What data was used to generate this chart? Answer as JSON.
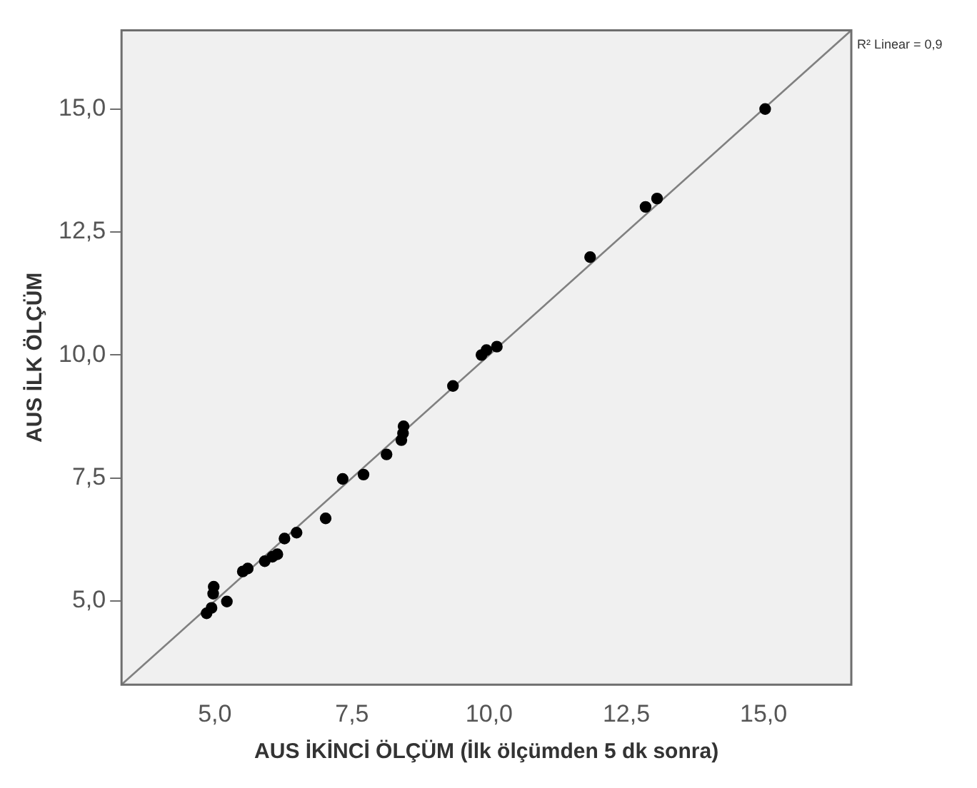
{
  "chart_data": {
    "type": "scatter",
    "xlabel": "AUS İKİNCİ ÖLÇÜM (İlk ölçümden 5 dk sonra)",
    "ylabel": "AUS İLK ÖLÇÜM",
    "xlim": [
      3.3,
      16.6
    ],
    "ylim": [
      3.3,
      16.6
    ],
    "xticks": [
      {
        "value": 5,
        "label": "5,0"
      },
      {
        "value": 7.5,
        "label": "7,5"
      },
      {
        "value": 10,
        "label": "10,0"
      },
      {
        "value": 12.5,
        "label": "12,5"
      },
      {
        "value": 15,
        "label": "15,0"
      }
    ],
    "yticks": [
      {
        "value": 5,
        "label": "5,0"
      },
      {
        "value": 7.5,
        "label": "7,5"
      },
      {
        "value": 10,
        "label": "10,0"
      },
      {
        "value": 12.5,
        "label": "12,5"
      },
      {
        "value": 15,
        "label": "15,0"
      }
    ],
    "grid": false,
    "legend": false,
    "marker": "circle",
    "annotations": [
      "R² Linear = 0,9"
    ],
    "series": [
      {
        "color": "#000000",
        "x": [
          4.85,
          4.94,
          4.98,
          4.97,
          5.22,
          5.51,
          5.6,
          5.91,
          6.05,
          6.14,
          6.27,
          6.49,
          7.02,
          7.33,
          7.71,
          8.13,
          8.4,
          8.43,
          8.44,
          9.34,
          9.86,
          9.95,
          10.14,
          11.84,
          12.85,
          13.06,
          15.03
        ],
        "values": [
          4.75,
          4.86,
          5.29,
          5.15,
          4.99,
          5.6,
          5.66,
          5.81,
          5.9,
          5.95,
          6.27,
          6.39,
          6.68,
          7.48,
          7.57,
          7.98,
          8.27,
          8.41,
          8.55,
          9.37,
          10.0,
          10.1,
          10.17,
          11.99,
          13.01,
          13.18,
          15.0
        ]
      },
      {
        "type": "line",
        "marker": "none",
        "color": "#808080",
        "x": [
          3.3,
          16.6
        ],
        "values": [
          3.3,
          16.6
        ]
      }
    ]
  }
}
